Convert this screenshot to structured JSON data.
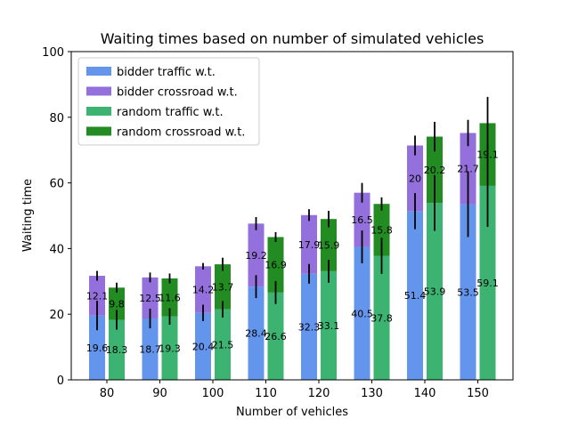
{
  "chart_data": {
    "type": "bar",
    "title": "Waiting times based on number of simulated vehicles",
    "xlabel": "Number of vehicles",
    "ylabel": "Waiting time",
    "ylim": [
      0,
      100
    ],
    "yticks": [
      0,
      20,
      40,
      60,
      80,
      100
    ],
    "categories": [
      "80",
      "90",
      "100",
      "110",
      "120",
      "130",
      "140",
      "150"
    ],
    "groups": [
      {
        "name": "bidder",
        "stacked_series": [
          {
            "name": "bidder traffic w.t.",
            "color": "#6495ed",
            "values": [
              19.6,
              18.7,
              20.4,
              28.4,
              32.3,
              40.5,
              51.4,
              53.5
            ],
            "labels": [
              "19.6",
              "18.7",
              "20.4",
              "28.4",
              "32.3",
              "40.5",
              "51.4",
              "53.5"
            ],
            "error": [
              4.5,
              3.0,
              2.5,
              3.5,
              3.0,
              5.0,
              5.5,
              10.0
            ]
          },
          {
            "name": "bidder crossroad w.t.",
            "color": "#9370db",
            "values": [
              12.1,
              12.5,
              14.2,
              19.2,
              17.9,
              16.5,
              20,
              21.7
            ],
            "labels": [
              "12.1",
              "12.5",
              "14.2",
              "19.2",
              "17.9",
              "16.5",
              "20",
              "21.7"
            ],
            "error": [
              1.5,
              1.5,
              1.0,
              2.0,
              1.8,
              3.0,
              3.0,
              4.0
            ]
          }
        ]
      },
      {
        "name": "random",
        "stacked_series": [
          {
            "name": "random traffic w.t.",
            "color": "#3cb371",
            "values": [
              18.3,
              19.3,
              21.5,
              26.6,
              33.1,
              37.8,
              53.9,
              59.1
            ],
            "labels": [
              "18.3",
              "19.3",
              "21.5",
              "26.6",
              "33.1",
              "37.8",
              "53.9",
              "59.1"
            ],
            "error": [
              3.0,
              2.5,
              2.5,
              3.5,
              3.5,
              5.5,
              8.5,
              12.5
            ]
          },
          {
            "name": "random crossroad w.t.",
            "color": "#228b22",
            "values": [
              9.8,
              11.6,
              13.7,
              16.9,
              15.9,
              15.8,
              20.2,
              19.1
            ],
            "labels": [
              "9.8",
              "11.6",
              "13.7",
              "16.9",
              "15.9",
              "15.8",
              "20.2",
              "19.1"
            ],
            "error": [
              1.5,
              1.5,
              2.0,
              1.5,
              2.5,
              2.0,
              4.5,
              8.0
            ]
          }
        ]
      }
    ],
    "legend": {
      "placement": "top-left",
      "entries": [
        {
          "label": "bidder traffic w.t.",
          "color": "#6495ed"
        },
        {
          "label": "bidder crossroad w.t.",
          "color": "#9370db"
        },
        {
          "label": "random traffic w.t.",
          "color": "#3cb371"
        },
        {
          "label": "random crossroad w.t.",
          "color": "#228b22"
        }
      ]
    },
    "grid": false
  }
}
